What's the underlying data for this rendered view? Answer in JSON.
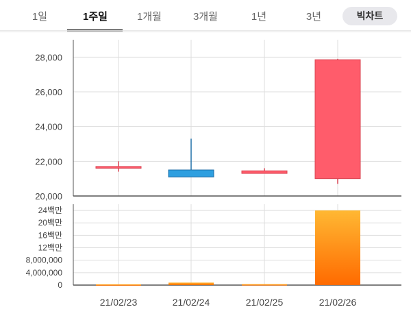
{
  "tabs": [
    {
      "label": "1일",
      "active": false
    },
    {
      "label": "1주일",
      "active": true
    },
    {
      "label": "1개월",
      "active": false
    },
    {
      "label": "3개월",
      "active": false
    },
    {
      "label": "1년",
      "active": false
    },
    {
      "label": "3년",
      "active": false
    }
  ],
  "big_chart_button": "빅차트",
  "colors": {
    "up": "#ff5c6b",
    "up_border": "#d94452",
    "down": "#2e9fe0",
    "down_border": "#1f6fa8",
    "volume_top": "#ffb833",
    "volume_bottom": "#ff6a00",
    "grid": "#dddddd",
    "axis": "#555555"
  },
  "chart_data": [
    {
      "type": "candlestick",
      "categories": [
        "21/02/23",
        "21/02/24",
        "21/02/25",
        "21/02/26"
      ],
      "series": [
        {
          "open": 21600,
          "high": 22000,
          "low": 21400,
          "close": 21700
        },
        {
          "open": 21500,
          "high": 23300,
          "low": 21100,
          "close": 21100
        },
        {
          "open": 21300,
          "high": 21600,
          "low": 21300,
          "close": 21450
        },
        {
          "open": 21000,
          "high": 27900,
          "low": 20700,
          "close": 27850
        }
      ],
      "ylim": [
        20000,
        29000
      ],
      "yticks": [
        20000,
        22000,
        24000,
        26000,
        28000
      ],
      "ytick_labels": [
        "20,000",
        "22,000",
        "24,000",
        "26,000",
        "28,000"
      ],
      "grid": true
    },
    {
      "type": "bar",
      "categories": [
        "21/02/23",
        "21/02/24",
        "21/02/25",
        "21/02/26"
      ],
      "values": [
        250000,
        800000,
        300000,
        24000000
      ],
      "ylim": [
        0,
        26000000
      ],
      "yticks": [
        0,
        4000000,
        8000000,
        12000000,
        16000000,
        20000000,
        24000000
      ],
      "ytick_labels": [
        "0",
        "4,000,000",
        "8,000,000",
        "12백만",
        "16백만",
        "20백만",
        "24백만"
      ],
      "grid": true
    }
  ]
}
